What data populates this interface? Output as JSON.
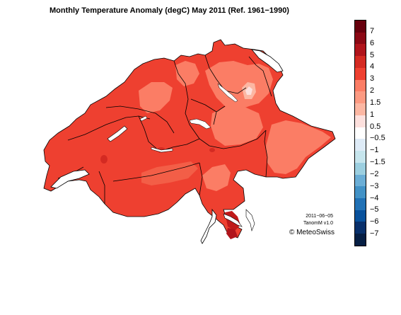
{
  "title": "Monthly Temperature Anomaly (degC) May 2011  (Ref. 1961−1990)",
  "colors": {
    "base_anomaly": "#ee4030",
    "warmer": "#d42a22",
    "cooler": "#fb7d65",
    "coolest_patch": "#fcb7a3",
    "lake": "#ffffff",
    "border": "#000000"
  },
  "legend": {
    "items": [
      {
        "label": "7",
        "color": "#67000d"
      },
      {
        "label": "6",
        "color": "#8b0814"
      },
      {
        "label": "5",
        "color": "#b0141b"
      },
      {
        "label": "4",
        "color": "#d42a22"
      },
      {
        "label": "3",
        "color": "#ee4030"
      },
      {
        "label": "2",
        "color": "#fb7d65"
      },
      {
        "label": "1.5",
        "color": "#fc9a82"
      },
      {
        "label": "1",
        "color": "#fcb7a3"
      },
      {
        "label": "0.5",
        "color": "#fde0dd"
      },
      {
        "label": "−0.5",
        "color": "#ffffff"
      },
      {
        "label": "−1",
        "color": "#deebf7"
      },
      {
        "label": "−1.5",
        "color": "#c6e5ed"
      },
      {
        "label": "−2",
        "color": "#9ccfe0"
      },
      {
        "label": "−3",
        "color": "#6baed6"
      },
      {
        "label": "−4",
        "color": "#4292c6"
      },
      {
        "label": "−5",
        "color": "#2171b5"
      },
      {
        "label": "−6",
        "color": "#08519c"
      },
      {
        "label": "−7",
        "color": "#08306b"
      },
      {
        "label": "",
        "color": "#061f44"
      }
    ]
  },
  "stamp": {
    "date": "2011−06−05",
    "version": "TanomM v1.0",
    "copyright": "© MeteoSwiss"
  }
}
